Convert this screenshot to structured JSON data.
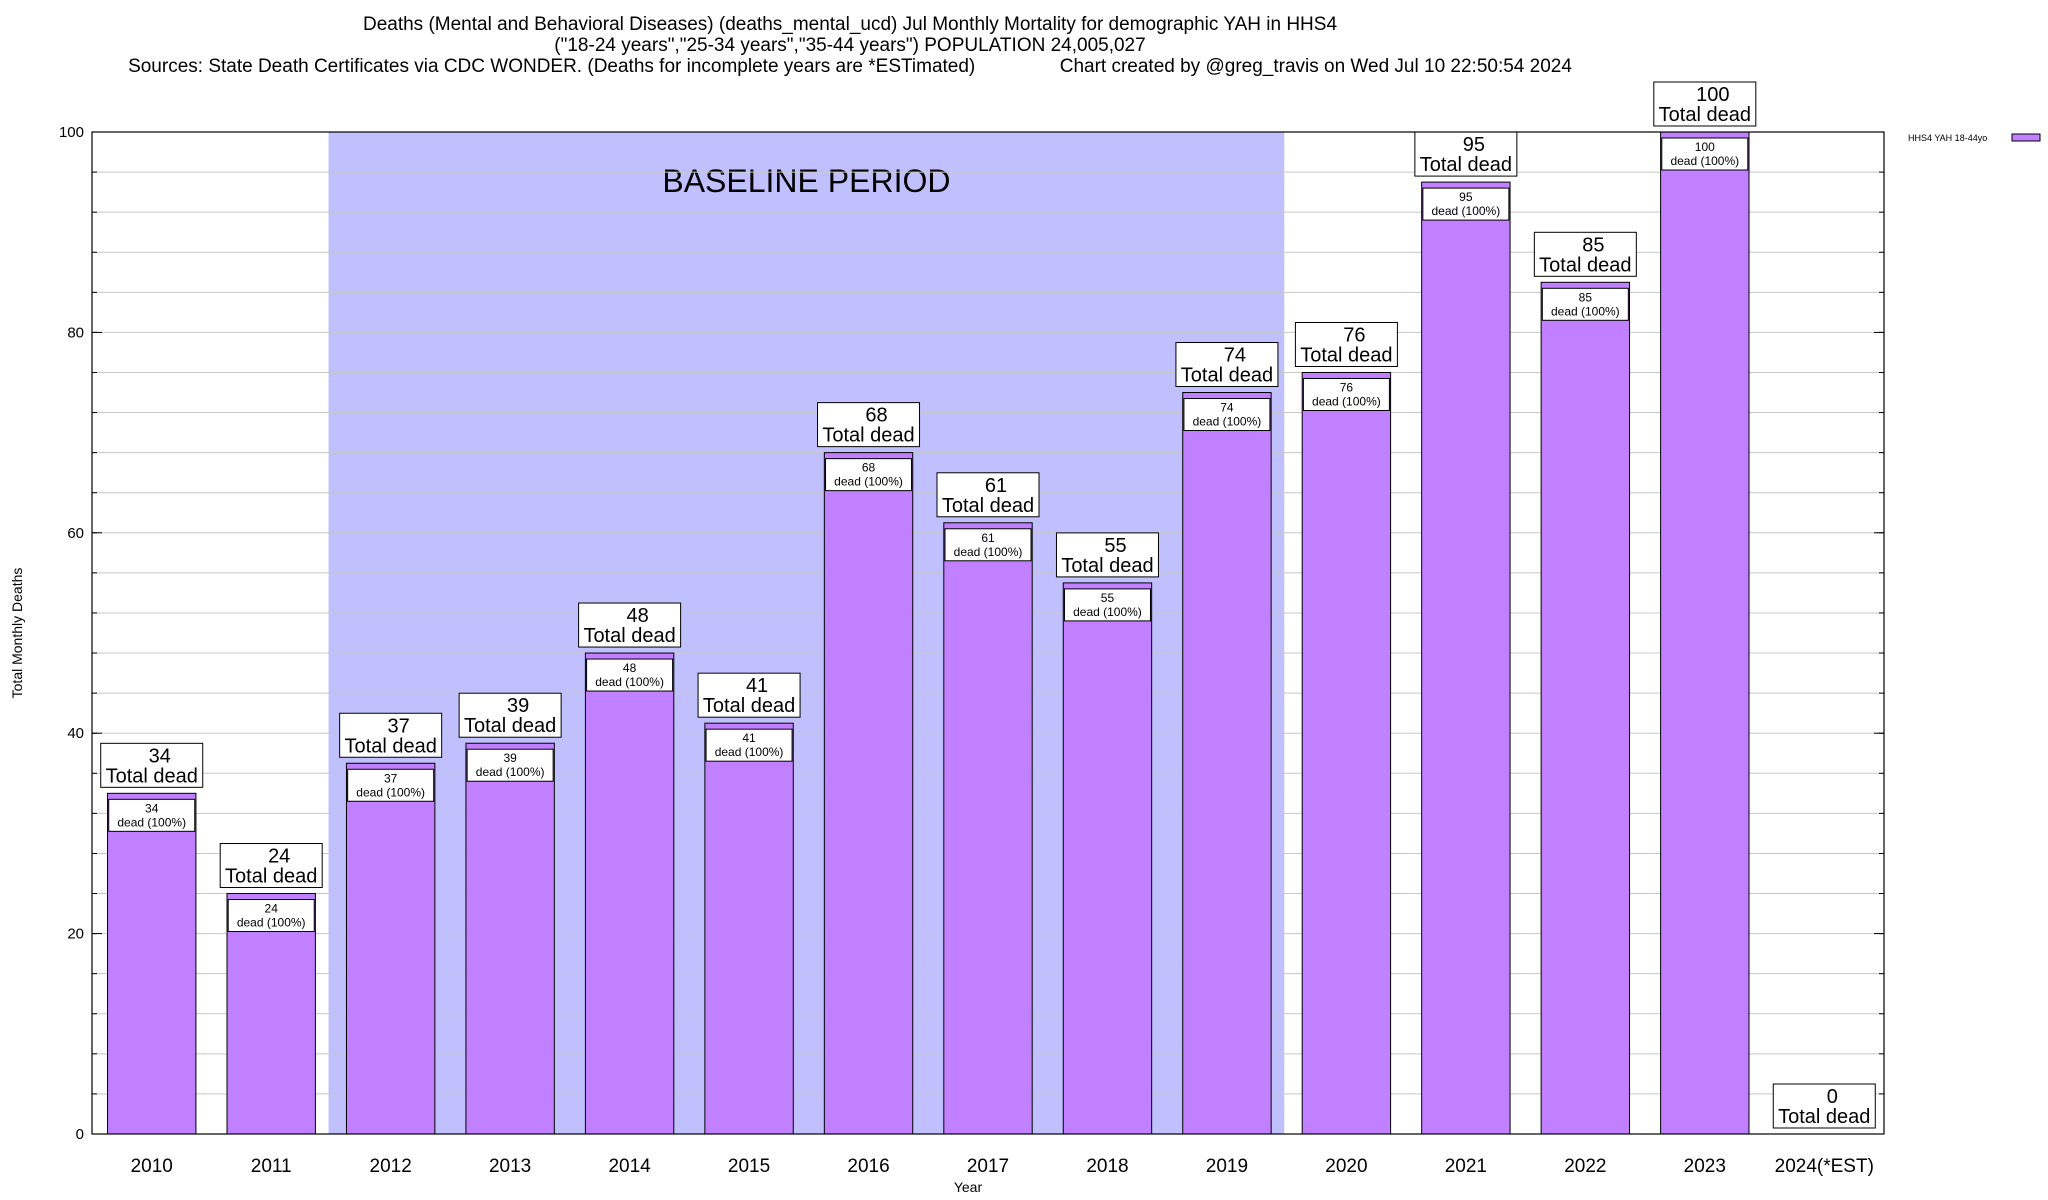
{
  "chart_data": {
    "type": "bar",
    "title_lines": [
      "Deaths (Mental and Behavioral Diseases) (deaths_mental_ucd) Jul Monthly Mortality for demographic YAH in HHS4",
      "(\"18-24 years\",\"25-34 years\",\"35-44 years\") POPULATION 24,005,027",
      "Sources: State Death Certificates via CDC WONDER. (Deaths for incomplete years are *ESTimated)                Chart created by @greg_travis on Wed Jul 10 22:50:54 2024"
    ],
    "xlabel": "Year",
    "ylabel": "Total Monthly Deaths",
    "ylim": [
      0,
      100
    ],
    "yticks": [
      0,
      20,
      40,
      60,
      80,
      100
    ],
    "categories": [
      "2010",
      "2011",
      "2012",
      "2013",
      "2014",
      "2015",
      "2016",
      "2017",
      "2018",
      "2019",
      "2020",
      "2021",
      "2022",
      "2023",
      "2024(*EST)"
    ],
    "series": [
      {
        "name": "HHS4 YAH 18-44yo",
        "values": [
          34,
          24,
          37,
          39,
          48,
          41,
          68,
          61,
          55,
          74,
          76,
          95,
          85,
          100,
          0
        ]
      }
    ],
    "top_label_suffix": "Total dead",
    "inner_labels": [
      "34",
      "24",
      "37",
      "39",
      "48",
      "41",
      "68",
      "61",
      "55",
      "74",
      "76",
      "95",
      "85",
      "100",
      ""
    ],
    "inner_label_suffix": "dead (100%)",
    "baseline_annotation": "BASELINE PERIOD",
    "baseline_range": [
      "2012",
      "2019"
    ],
    "colors": {
      "bar": "#c080ff",
      "baseline": "#c0c0ff",
      "grid": "#c8c8c8"
    },
    "grid": true,
    "legend_position": "top-right"
  }
}
